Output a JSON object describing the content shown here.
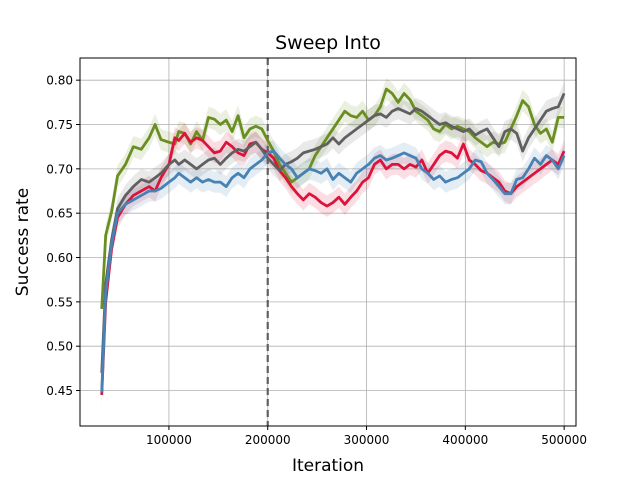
{
  "chart_data": {
    "type": "line",
    "title": "Sweep Into",
    "xlabel": "Iteration",
    "ylabel": "Success rate",
    "xlim": [
      10000,
      512000
    ],
    "ylim": [
      0.41,
      0.825
    ],
    "xticks": [
      100000,
      200000,
      300000,
      400000,
      500000
    ],
    "xtick_labels": [
      "100000",
      "200000",
      "300000",
      "400000",
      "500000"
    ],
    "yticks": [
      0.45,
      0.5,
      0.55,
      0.6,
      0.65,
      0.7,
      0.75,
      0.8
    ],
    "ytick_labels": [
      "0.45",
      "0.50",
      "0.55",
      "0.60",
      "0.65",
      "0.70",
      "0.75",
      "0.80"
    ],
    "grid": true,
    "vline": {
      "x": 200000,
      "style": "dashed",
      "color": "#606060"
    },
    "series": [
      {
        "color": "#6b8e23",
        "x": [
          32000,
          36000,
          42000,
          48000,
          56000,
          64000,
          72000,
          80000,
          86000,
          92000,
          100000,
          106000,
          110000,
          116000,
          122000,
          128000,
          134000,
          140000,
          146000,
          152000,
          158000,
          164000,
          170000,
          176000,
          182000,
          188000,
          194000,
          200000,
          206000,
          212000,
          218000,
          224000,
          230000,
          236000,
          242000,
          248000,
          254000,
          260000,
          266000,
          272000,
          278000,
          284000,
          290000,
          296000,
          302000,
          308000,
          314000,
          320000,
          326000,
          332000,
          338000,
          344000,
          350000,
          356000,
          362000,
          368000,
          374000,
          380000,
          386000,
          392000,
          398000,
          404000,
          410000,
          416000,
          422000,
          428000,
          434000,
          440000,
          446000,
          452000,
          458000,
          464000,
          470000,
          476000,
          482000,
          488000,
          494000,
          500000
        ],
        "y": [
          0.542,
          0.625,
          0.652,
          0.692,
          0.705,
          0.725,
          0.722,
          0.735,
          0.75,
          0.733,
          0.73,
          0.728,
          0.742,
          0.74,
          0.728,
          0.742,
          0.732,
          0.758,
          0.756,
          0.75,
          0.755,
          0.742,
          0.76,
          0.735,
          0.745,
          0.748,
          0.745,
          0.732,
          0.72,
          0.705,
          0.695,
          0.685,
          0.69,
          0.695,
          0.7,
          0.715,
          0.725,
          0.735,
          0.745,
          0.755,
          0.765,
          0.76,
          0.758,
          0.765,
          0.755,
          0.76,
          0.77,
          0.79,
          0.785,
          0.775,
          0.785,
          0.778,
          0.765,
          0.76,
          0.755,
          0.745,
          0.742,
          0.75,
          0.745,
          0.748,
          0.745,
          0.742,
          0.735,
          0.73,
          0.725,
          0.73,
          0.728,
          0.73,
          0.745,
          0.76,
          0.777,
          0.77,
          0.75,
          0.74,
          0.745,
          0.73,
          0.758,
          0.758
        ]
      },
      {
        "color": "#dc143c",
        "x": [
          32000,
          36000,
          42000,
          48000,
          56000,
          64000,
          72000,
          80000,
          86000,
          92000,
          100000,
          106000,
          110000,
          116000,
          122000,
          128000,
          134000,
          140000,
          146000,
          152000,
          158000,
          164000,
          170000,
          176000,
          182000,
          188000,
          194000,
          200000,
          206000,
          212000,
          218000,
          224000,
          230000,
          236000,
          242000,
          248000,
          254000,
          260000,
          266000,
          272000,
          278000,
          284000,
          290000,
          296000,
          302000,
          308000,
          314000,
          320000,
          326000,
          332000,
          338000,
          344000,
          350000,
          356000,
          362000,
          368000,
          374000,
          380000,
          386000,
          392000,
          398000,
          404000,
          410000,
          416000,
          422000,
          428000,
          434000,
          440000,
          446000,
          452000,
          458000,
          464000,
          470000,
          476000,
          482000,
          488000,
          494000,
          500000
        ],
        "y": [
          0.445,
          0.55,
          0.61,
          0.645,
          0.66,
          0.67,
          0.675,
          0.68,
          0.675,
          0.69,
          0.705,
          0.735,
          0.732,
          0.74,
          0.73,
          0.735,
          0.732,
          0.725,
          0.718,
          0.72,
          0.73,
          0.725,
          0.718,
          0.715,
          0.728,
          0.73,
          0.722,
          0.718,
          0.712,
          0.698,
          0.69,
          0.68,
          0.672,
          0.665,
          0.672,
          0.668,
          0.662,
          0.658,
          0.662,
          0.668,
          0.66,
          0.668,
          0.675,
          0.685,
          0.69,
          0.705,
          0.71,
          0.7,
          0.705,
          0.705,
          0.7,
          0.705,
          0.702,
          0.71,
          0.695,
          0.705,
          0.715,
          0.72,
          0.718,
          0.712,
          0.728,
          0.71,
          0.705,
          0.698,
          0.695,
          0.69,
          0.685,
          0.675,
          0.672,
          0.68,
          0.685,
          0.69,
          0.695,
          0.7,
          0.705,
          0.71,
          0.705,
          0.72
        ]
      },
      {
        "color": "#606060",
        "x": [
          32000,
          36000,
          42000,
          48000,
          56000,
          64000,
          72000,
          80000,
          86000,
          92000,
          100000,
          106000,
          110000,
          116000,
          122000,
          128000,
          134000,
          140000,
          146000,
          152000,
          158000,
          164000,
          170000,
          176000,
          182000,
          188000,
          194000,
          200000,
          206000,
          212000,
          218000,
          224000,
          230000,
          236000,
          242000,
          248000,
          254000,
          260000,
          266000,
          272000,
          278000,
          284000,
          290000,
          296000,
          302000,
          308000,
          314000,
          320000,
          326000,
          332000,
          338000,
          344000,
          350000,
          356000,
          362000,
          368000,
          374000,
          380000,
          386000,
          392000,
          398000,
          404000,
          410000,
          416000,
          422000,
          428000,
          434000,
          440000,
          446000,
          452000,
          458000,
          464000,
          470000,
          476000,
          482000,
          488000,
          494000,
          500000
        ],
        "y": [
          0.47,
          0.57,
          0.62,
          0.655,
          0.67,
          0.68,
          0.688,
          0.685,
          0.69,
          0.695,
          0.705,
          0.71,
          0.705,
          0.71,
          0.705,
          0.7,
          0.705,
          0.71,
          0.712,
          0.705,
          0.712,
          0.718,
          0.722,
          0.72,
          0.725,
          0.73,
          0.722,
          0.712,
          0.705,
          0.698,
          0.705,
          0.708,
          0.712,
          0.718,
          0.72,
          0.722,
          0.725,
          0.728,
          0.735,
          0.728,
          0.735,
          0.74,
          0.745,
          0.75,
          0.755,
          0.76,
          0.762,
          0.758,
          0.765,
          0.768,
          0.765,
          0.762,
          0.768,
          0.765,
          0.76,
          0.755,
          0.75,
          0.752,
          0.748,
          0.745,
          0.742,
          0.745,
          0.738,
          0.742,
          0.745,
          0.735,
          0.725,
          0.742,
          0.745,
          0.74,
          0.72,
          0.735,
          0.745,
          0.755,
          0.765,
          0.768,
          0.77,
          0.785
        ]
      },
      {
        "color": "#4682b4",
        "x": [
          32000,
          36000,
          42000,
          48000,
          56000,
          64000,
          72000,
          80000,
          86000,
          92000,
          100000,
          106000,
          110000,
          116000,
          122000,
          128000,
          134000,
          140000,
          146000,
          152000,
          158000,
          164000,
          170000,
          176000,
          182000,
          188000,
          194000,
          200000,
          206000,
          212000,
          218000,
          224000,
          230000,
          236000,
          242000,
          248000,
          254000,
          260000,
          266000,
          272000,
          278000,
          284000,
          290000,
          296000,
          302000,
          308000,
          314000,
          320000,
          326000,
          332000,
          338000,
          344000,
          350000,
          356000,
          362000,
          368000,
          374000,
          380000,
          386000,
          392000,
          398000,
          404000,
          410000,
          416000,
          422000,
          428000,
          434000,
          440000,
          446000,
          452000,
          458000,
          464000,
          470000,
          476000,
          482000,
          488000,
          494000,
          500000
        ],
        "y": [
          0.448,
          0.56,
          0.615,
          0.65,
          0.66,
          0.665,
          0.67,
          0.675,
          0.675,
          0.678,
          0.685,
          0.69,
          0.695,
          0.69,
          0.685,
          0.69,
          0.685,
          0.688,
          0.685,
          0.685,
          0.68,
          0.69,
          0.695,
          0.69,
          0.7,
          0.705,
          0.71,
          0.718,
          0.72,
          0.712,
          0.705,
          0.7,
          0.69,
          0.695,
          0.7,
          0.698,
          0.695,
          0.7,
          0.688,
          0.695,
          0.69,
          0.685,
          0.695,
          0.7,
          0.705,
          0.712,
          0.715,
          0.71,
          0.712,
          0.715,
          0.718,
          0.715,
          0.712,
          0.7,
          0.695,
          0.688,
          0.692,
          0.685,
          0.688,
          0.69,
          0.695,
          0.7,
          0.71,
          0.708,
          0.695,
          0.688,
          0.68,
          0.672,
          0.672,
          0.688,
          0.69,
          0.7,
          0.712,
          0.705,
          0.715,
          0.71,
          0.7,
          0.715
        ]
      }
    ]
  }
}
